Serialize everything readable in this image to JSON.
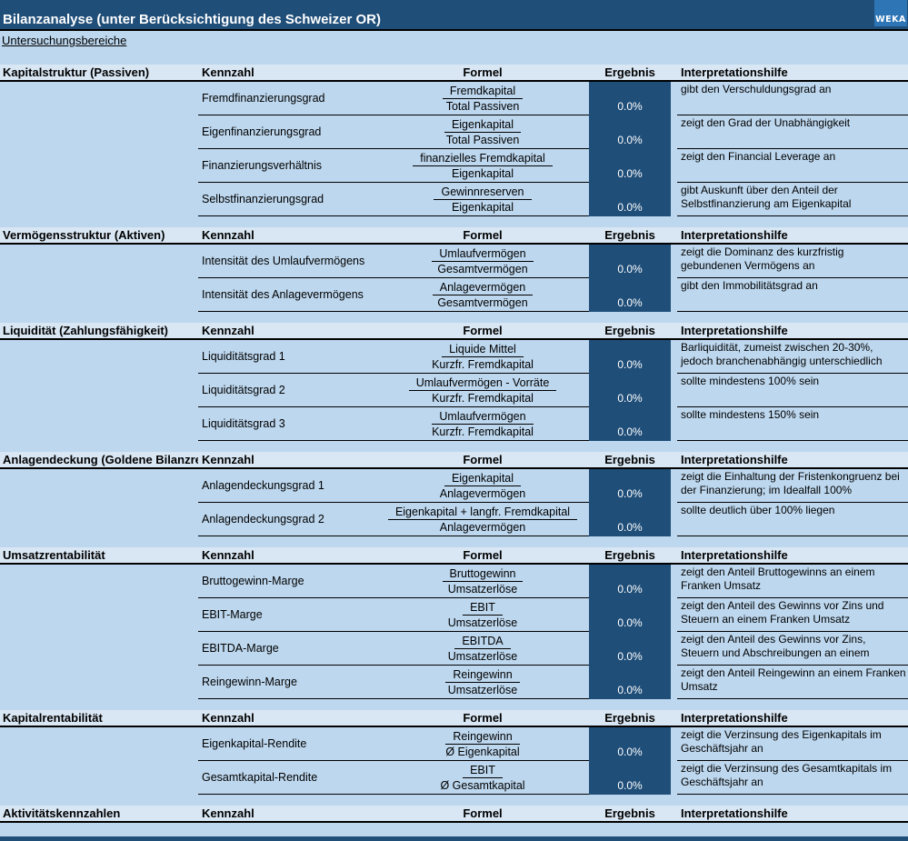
{
  "header": {
    "title": "Bilanzanalyse (unter Berücksichtigung des Schweizer OR)",
    "logo_text": "WEKA",
    "subtitle_link": "Untersuchungsbereiche"
  },
  "columns": {
    "kennzahl": "Kennzahl",
    "formel": "Formel",
    "ergebnis": "Ergebnis",
    "interpretation": "Interpretationshilfe"
  },
  "colors": {
    "accent_navy": "#1F4E79",
    "body_blue": "#BDD7EE",
    "section_header_blue": "#D9E7F4",
    "logo_blue": "#2E75B6"
  },
  "sections": [
    {
      "title": "Kapitalstruktur (Passiven)",
      "rows": [
        {
          "kennzahl": "Fremdfinanzierungsgrad",
          "numerator": "Fremdkapital",
          "denominator": "Total Passiven",
          "ergebnis": "0.0%",
          "interpretation": "gibt den Verschuldungsgrad an"
        },
        {
          "kennzahl": "Eigenfinanzierungsgrad",
          "numerator": "Eigenkapital",
          "denominator": "Total Passiven",
          "ergebnis": "0.0%",
          "interpretation": "zeigt den Grad der Unabhängigkeit"
        },
        {
          "kennzahl": "Finanzierungsverhältnis",
          "numerator": "finanzielles Fremdkapital",
          "denominator": "Eigenkapital",
          "ergebnis": "0.0%",
          "interpretation": "zeigt den Financial Leverage an"
        },
        {
          "kennzahl": "Selbstfinanzierungsgrad",
          "numerator": "Gewinnreserven",
          "denominator": "Eigenkapital",
          "ergebnis": "0.0%",
          "interpretation": "gibt Auskunft über den Anteil der Selbstfinanzierung am Eigenkapital"
        }
      ]
    },
    {
      "title": "Vermögensstruktur (Aktiven)",
      "rows": [
        {
          "kennzahl": "Intensität des Umlaufvermögens",
          "numerator": "Umlaufvermögen",
          "denominator": "Gesamtvermögen",
          "ergebnis": "0.0%",
          "interpretation": "zeigt die Dominanz des kurzfristig gebundenen Vermögens an"
        },
        {
          "kennzahl": "Intensität des Anlagevermögens",
          "numerator": "Anlagevermögen",
          "denominator": "Gesamtvermögen",
          "ergebnis": "0.0%",
          "interpretation": "gibt den Immobilitätsgrad an"
        }
      ]
    },
    {
      "title": "Liquidität (Zahlungsfähigkeit)",
      "rows": [
        {
          "kennzahl": "Liquiditätsgrad 1",
          "numerator": "Liquide Mittel",
          "denominator": "Kurzfr. Fremdkapital",
          "ergebnis": "0.0%",
          "interpretation": "Barliquidität, zumeist zwischen 20-30%, jedoch branchenabhängig unterschiedlich"
        },
        {
          "kennzahl": "Liquiditätsgrad 2",
          "numerator": "Umlaufvermögen - Vorräte",
          "denominator": "Kurzfr. Fremdkapital",
          "ergebnis": "0.0%",
          "interpretation": "sollte mindestens 100% sein"
        },
        {
          "kennzahl": "Liquiditätsgrad 3",
          "numerator": "Umlaufvermögen",
          "denominator": "Kurzfr. Fremdkapital",
          "ergebnis": "0.0%",
          "interpretation": "sollte mindestens 150% sein"
        }
      ]
    },
    {
      "title": "Anlagendeckung (Goldene Bilanzregel)",
      "rows": [
        {
          "kennzahl": "Anlagendeckungsgrad 1",
          "numerator": "Eigenkapital",
          "denominator": "Anlagevermögen",
          "ergebnis": "0.0%",
          "interpretation": "zeigt die Einhaltung der Fristenkongruenz bei der Finanzierung; im Idealfall 100%"
        },
        {
          "kennzahl": "Anlagendeckungsgrad 2",
          "numerator": "Eigenkapital + langfr. Fremdkapital",
          "denominator": "Anlagevermögen",
          "ergebnis": "0.0%",
          "interpretation": "sollte deutlich über 100% liegen"
        }
      ]
    },
    {
      "title": "Umsatzrentabilität",
      "rows": [
        {
          "kennzahl": "Bruttogewinn-Marge",
          "numerator": "Bruttogewinn",
          "denominator": "Umsatzerlöse",
          "ergebnis": "0.0%",
          "interpretation": "zeigt den Anteil Bruttogewinns an einem Franken Umsatz"
        },
        {
          "kennzahl": "EBIT-Marge",
          "numerator": "EBIT",
          "denominator": "Umsatzerlöse",
          "ergebnis": "0.0%",
          "interpretation": "zeigt den Anteil des Gewinns vor Zins und Steuern an einem Franken Umsatz"
        },
        {
          "kennzahl": "EBITDA-Marge",
          "numerator": "EBITDA",
          "denominator": "Umsatzerlöse",
          "ergebnis": "0.0%",
          "interpretation": "zeigt den Anteil des Gewinns vor Zins, Steuern und Abschreibungen an einem"
        },
        {
          "kennzahl": "Reingewinn-Marge",
          "numerator": "Reingewinn",
          "denominator": "Umsatzerlöse",
          "ergebnis": "0.0%",
          "interpretation": "zeigt den Anteil Reingewinn an einem Franken Umsatz"
        }
      ]
    },
    {
      "title": "Kapitalrentabilität",
      "rows": [
        {
          "kennzahl": "Eigenkapital-Rendite",
          "numerator": "Reingewinn",
          "denominator": "Ø Eigenkapital",
          "ergebnis": "0.0%",
          "interpretation": "zeigt die Verzinsung des Eigenkapitals im Geschäftsjahr an"
        },
        {
          "kennzahl": "Gesamtkapital-Rendite",
          "numerator": "EBIT",
          "denominator": "Ø Gesamtkapital",
          "ergebnis": "0.0%",
          "interpretation": "zeigt die Verzinsung des Gesamtkapitals im Geschäftsjahr an"
        }
      ]
    },
    {
      "title": "Aktivitätskennzahlen",
      "rows": []
    }
  ]
}
